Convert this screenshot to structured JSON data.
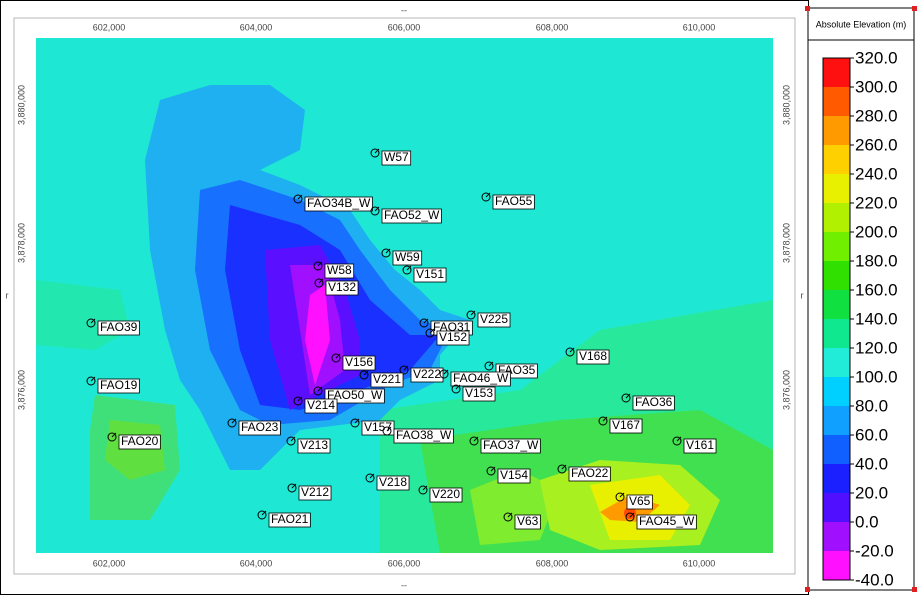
{
  "map": {
    "x_axis_label": "--",
    "y_axis_label": "r",
    "x_ticks": [
      "602,000",
      "604,000",
      "606,000",
      "608,000",
      "610,000"
    ],
    "y_ticks": [
      "3,880,000",
      "3,878,000",
      "3,876,000"
    ],
    "wells": [
      "W57",
      "FAO34B_W",
      "FAO52_W",
      "FAO55",
      "W59",
      "V151",
      "W58",
      "V132",
      "FAO39",
      "FAO31",
      "V225",
      "V152",
      "V168",
      "V156",
      "FAO35",
      "V222",
      "V221",
      "FAO46_W",
      "FAO19",
      "V153",
      "FAO50_W",
      "V214",
      "FAO36",
      "FAO23",
      "V157",
      "FAO38_W",
      "V167",
      "FAO20",
      "V213",
      "FAO37_W",
      "V161",
      "V154",
      "FAO22",
      "V218",
      "V212",
      "V220",
      "V65",
      "FAO21",
      "V63",
      "FAO45_W"
    ]
  },
  "legend": {
    "title": "Absolute Elevation (m)",
    "levels": [
      "320.0",
      "300.0",
      "280.0",
      "260.0",
      "240.0",
      "220.0",
      "200.0",
      "180.0",
      "160.0",
      "140.0",
      "120.0",
      "100.0",
      "80.0",
      "60.0",
      "40.0",
      "20.0",
      "0.0",
      "-20.0",
      "-40.0"
    ],
    "colors": [
      "#ff1010",
      "#ff5a00",
      "#ff9a00",
      "#ffd000",
      "#e8f000",
      "#b0f000",
      "#70f000",
      "#30e000",
      "#10e040",
      "#10e890",
      "#20ecd8",
      "#00d0ff",
      "#10a0ff",
      "#1060ff",
      "#1a20ff",
      "#5010ff",
      "#a010ff",
      "#ff10ff"
    ]
  }
}
